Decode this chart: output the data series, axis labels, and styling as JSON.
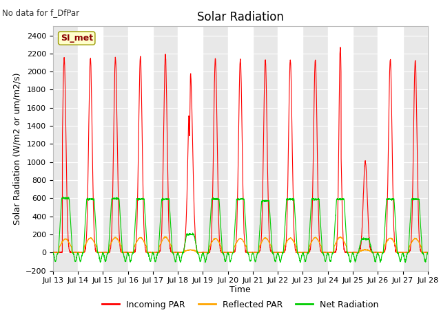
{
  "title": "Solar Radiation",
  "subtitle": "No data for f_DfPar",
  "ylabel": "Solar Radiation (W/m2 or um/m2/s)",
  "xlabel": "Time",
  "station_label": "SI_met",
  "ylim": [
    -200,
    2500
  ],
  "yticks": [
    -200,
    0,
    200,
    400,
    600,
    800,
    1000,
    1200,
    1400,
    1600,
    1800,
    2000,
    2200,
    2400
  ],
  "xtick_labels": [
    "Jul 13",
    "Jul 14",
    "Jul 15",
    "Jul 16",
    "Jul 17",
    "Jul 18",
    "Jul 19",
    "Jul 20",
    "Jul 21",
    "Jul 22",
    "Jul 23",
    "Jul 24",
    "Jul 25",
    "Jul 26",
    "Jul 27",
    "Jul 28"
  ],
  "bg_color": "#e8e8e8",
  "stripe_color": "#ffffff",
  "incoming_color": "#ff0000",
  "reflected_color": "#ffa500",
  "net_color": "#00cc00",
  "legend_entries": [
    "Incoming PAR",
    "Reflected PAR",
    "Net Radiation"
  ],
  "legend_colors": [
    "#ff0000",
    "#ffa500",
    "#00cc00"
  ],
  "grid_color": "#ffffff",
  "title_fontsize": 12,
  "label_fontsize": 9,
  "tick_fontsize": 8
}
